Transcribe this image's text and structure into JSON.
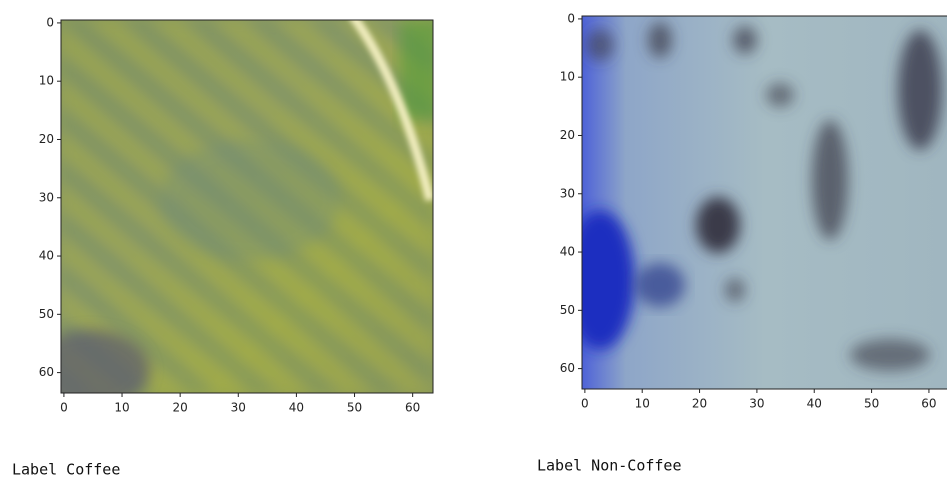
{
  "chart_data": [
    {
      "type": "image",
      "xlim": [
        -0.5,
        63.5
      ],
      "ylim": [
        63.5,
        -0.5
      ],
      "xticks": [
        0,
        10,
        20,
        30,
        40,
        50,
        60
      ],
      "yticks": [
        0,
        10,
        20,
        30,
        40,
        50,
        60
      ]
    },
    {
      "type": "image",
      "xlim": [
        -0.5,
        63.5
      ],
      "ylim": [
        63.5,
        -0.5
      ],
      "xticks": [
        0,
        10,
        20,
        30,
        40,
        50,
        60
      ],
      "yticks": [
        0,
        10,
        20,
        30,
        40,
        50,
        60
      ]
    }
  ],
  "captions": [
    "Label Coffee",
    "Label Non-Coffee"
  ]
}
